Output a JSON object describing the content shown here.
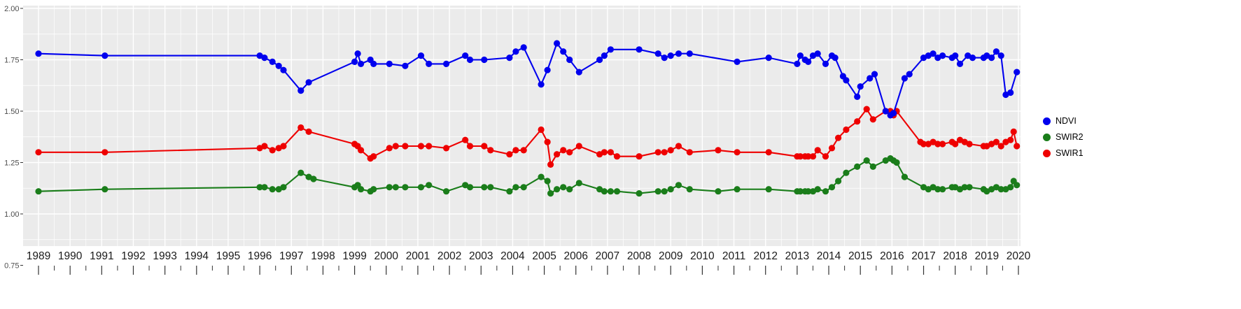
{
  "figure": {
    "background": "#FFFFFF",
    "panel_background": "#EBEBEB",
    "grid_color": "#FFFFFF",
    "tick_color": "#333333",
    "axis_text_color": "#4D4D4D",
    "x_label_color": "#1A1A1A"
  },
  "legend": {
    "items": [
      {
        "label": "NDVI",
        "color": "#0000EE"
      },
      {
        "label": "SWIR2",
        "color": "#1A7D1A"
      },
      {
        "label": "SWIR1",
        "color": "#EE0000"
      }
    ]
  },
  "chart_data": {
    "type": "line",
    "title": "",
    "xlabel": "",
    "ylabel": "",
    "grid": "major+minor",
    "legend_position": "right",
    "xlim": [
      1988.5,
      2020.1
    ],
    "ylim": [
      0.84,
      2.01
    ],
    "x_ticks": [
      1989,
      1990,
      1991,
      1992,
      1993,
      1994,
      1995,
      1996,
      1997,
      1998,
      1999,
      2000,
      2001,
      2002,
      2003,
      2004,
      2005,
      2006,
      2007,
      2008,
      2009,
      2010,
      2011,
      2012,
      2013,
      2014,
      2015,
      2016,
      2017,
      2018,
      2019,
      2020
    ],
    "x_tick_labels": [
      "1989",
      "1990",
      "1991",
      "1992",
      "1993",
      "1994",
      "1995",
      "1996",
      "1997",
      "1998",
      "1999",
      "2000",
      "2001",
      "2002",
      "2003",
      "2004",
      "2005",
      "2006",
      "2007",
      "2008",
      "2009",
      "2010",
      "2011",
      "2012",
      "2013",
      "2014",
      "2015",
      "2016",
      "2017",
      "2018",
      "2019",
      "2020"
    ],
    "y_ticks": [
      2.0,
      1.75,
      1.5,
      1.25,
      1.0,
      0.75
    ],
    "y_tick_labels": [
      "2.00",
      "1.75",
      "1.50",
      "1.25",
      "1.00",
      "0.75"
    ],
    "y_minor_ticks": [
      1.875,
      1.625,
      1.375,
      1.125,
      0.875
    ],
    "series": [
      {
        "name": "SWIR2",
        "color": "#1A7D1A",
        "points": [
          [
            1989.0,
            1.11
          ],
          [
            1991.1,
            1.12
          ],
          [
            1996.0,
            1.13
          ],
          [
            1996.15,
            1.13
          ],
          [
            1996.4,
            1.12
          ],
          [
            1996.6,
            1.12
          ],
          [
            1996.75,
            1.13
          ],
          [
            1997.3,
            1.2
          ],
          [
            1997.55,
            1.18
          ],
          [
            1997.7,
            1.17
          ],
          [
            1999.0,
            1.13
          ],
          [
            1999.1,
            1.14
          ],
          [
            1999.2,
            1.12
          ],
          [
            1999.5,
            1.11
          ],
          [
            1999.6,
            1.12
          ],
          [
            2000.1,
            1.13
          ],
          [
            2000.3,
            1.13
          ],
          [
            2000.6,
            1.13
          ],
          [
            2001.1,
            1.13
          ],
          [
            2001.35,
            1.14
          ],
          [
            2001.9,
            1.11
          ],
          [
            2002.5,
            1.14
          ],
          [
            2002.65,
            1.13
          ],
          [
            2003.1,
            1.13
          ],
          [
            2003.3,
            1.13
          ],
          [
            2003.9,
            1.11
          ],
          [
            2004.1,
            1.13
          ],
          [
            2004.35,
            1.13
          ],
          [
            2004.9,
            1.18
          ],
          [
            2005.1,
            1.16
          ],
          [
            2005.2,
            1.1
          ],
          [
            2005.4,
            1.12
          ],
          [
            2005.6,
            1.13
          ],
          [
            2005.8,
            1.12
          ],
          [
            2006.1,
            1.15
          ],
          [
            2006.75,
            1.12
          ],
          [
            2006.9,
            1.11
          ],
          [
            2007.1,
            1.11
          ],
          [
            2007.3,
            1.11
          ],
          [
            2008.0,
            1.1
          ],
          [
            2008.6,
            1.11
          ],
          [
            2008.8,
            1.11
          ],
          [
            2009.0,
            1.12
          ],
          [
            2009.25,
            1.14
          ],
          [
            2009.6,
            1.12
          ],
          [
            2010.5,
            1.11
          ],
          [
            2011.1,
            1.12
          ],
          [
            2012.1,
            1.12
          ],
          [
            2013.0,
            1.11
          ],
          [
            2013.1,
            1.11
          ],
          [
            2013.25,
            1.11
          ],
          [
            2013.35,
            1.11
          ],
          [
            2013.5,
            1.11
          ],
          [
            2013.65,
            1.12
          ],
          [
            2013.9,
            1.11
          ],
          [
            2014.1,
            1.13
          ],
          [
            2014.3,
            1.16
          ],
          [
            2014.55,
            1.2
          ],
          [
            2014.9,
            1.23
          ],
          [
            2015.2,
            1.26
          ],
          [
            2015.4,
            1.23
          ],
          [
            2015.8,
            1.26
          ],
          [
            2015.95,
            1.27
          ],
          [
            2016.05,
            1.26
          ],
          [
            2016.15,
            1.25
          ],
          [
            2016.4,
            1.18
          ],
          [
            2017.0,
            1.13
          ],
          [
            2017.15,
            1.12
          ],
          [
            2017.3,
            1.13
          ],
          [
            2017.45,
            1.12
          ],
          [
            2017.6,
            1.12
          ],
          [
            2017.9,
            1.13
          ],
          [
            2018.0,
            1.13
          ],
          [
            2018.15,
            1.12
          ],
          [
            2018.3,
            1.13
          ],
          [
            2018.45,
            1.13
          ],
          [
            2018.9,
            1.12
          ],
          [
            2019.0,
            1.11
          ],
          [
            2019.15,
            1.12
          ],
          [
            2019.3,
            1.13
          ],
          [
            2019.45,
            1.12
          ],
          [
            2019.6,
            1.12
          ],
          [
            2019.75,
            1.13
          ],
          [
            2019.85,
            1.16
          ],
          [
            2019.95,
            1.14
          ]
        ]
      },
      {
        "name": "SWIR1",
        "color": "#EE0000",
        "points": [
          [
            1989.0,
            1.3
          ],
          [
            1991.1,
            1.3
          ],
          [
            1996.0,
            1.32
          ],
          [
            1996.15,
            1.33
          ],
          [
            1996.4,
            1.31
          ],
          [
            1996.6,
            1.32
          ],
          [
            1996.75,
            1.33
          ],
          [
            1997.3,
            1.42
          ],
          [
            1997.55,
            1.4
          ],
          [
            1999.0,
            1.34
          ],
          [
            1999.1,
            1.33
          ],
          [
            1999.2,
            1.31
          ],
          [
            1999.5,
            1.27
          ],
          [
            1999.6,
            1.28
          ],
          [
            2000.1,
            1.32
          ],
          [
            2000.3,
            1.33
          ],
          [
            2000.6,
            1.33
          ],
          [
            2001.1,
            1.33
          ],
          [
            2001.35,
            1.33
          ],
          [
            2001.9,
            1.32
          ],
          [
            2002.5,
            1.36
          ],
          [
            2002.65,
            1.33
          ],
          [
            2003.1,
            1.33
          ],
          [
            2003.3,
            1.31
          ],
          [
            2003.9,
            1.29
          ],
          [
            2004.1,
            1.31
          ],
          [
            2004.35,
            1.31
          ],
          [
            2004.9,
            1.41
          ],
          [
            2005.1,
            1.35
          ],
          [
            2005.2,
            1.24
          ],
          [
            2005.4,
            1.29
          ],
          [
            2005.6,
            1.31
          ],
          [
            2005.8,
            1.3
          ],
          [
            2006.1,
            1.33
          ],
          [
            2006.75,
            1.29
          ],
          [
            2006.9,
            1.3
          ],
          [
            2007.1,
            1.3
          ],
          [
            2007.3,
            1.28
          ],
          [
            2008.0,
            1.28
          ],
          [
            2008.6,
            1.3
          ],
          [
            2008.8,
            1.3
          ],
          [
            2009.0,
            1.31
          ],
          [
            2009.25,
            1.33
          ],
          [
            2009.6,
            1.3
          ],
          [
            2010.5,
            1.31
          ],
          [
            2011.1,
            1.3
          ],
          [
            2012.1,
            1.3
          ],
          [
            2013.0,
            1.28
          ],
          [
            2013.1,
            1.28
          ],
          [
            2013.25,
            1.28
          ],
          [
            2013.35,
            1.28
          ],
          [
            2013.5,
            1.28
          ],
          [
            2013.65,
            1.31
          ],
          [
            2013.9,
            1.28
          ],
          [
            2014.1,
            1.32
          ],
          [
            2014.3,
            1.37
          ],
          [
            2014.55,
            1.41
          ],
          [
            2014.9,
            1.45
          ],
          [
            2015.2,
            1.51
          ],
          [
            2015.4,
            1.46
          ],
          [
            2015.8,
            1.5
          ],
          [
            2015.95,
            1.5
          ],
          [
            2016.05,
            1.48
          ],
          [
            2016.15,
            1.5
          ],
          [
            2016.9,
            1.35
          ],
          [
            2017.0,
            1.34
          ],
          [
            2017.15,
            1.34
          ],
          [
            2017.3,
            1.35
          ],
          [
            2017.45,
            1.34
          ],
          [
            2017.6,
            1.34
          ],
          [
            2017.9,
            1.35
          ],
          [
            2018.0,
            1.34
          ],
          [
            2018.15,
            1.36
          ],
          [
            2018.3,
            1.35
          ],
          [
            2018.45,
            1.34
          ],
          [
            2018.9,
            1.33
          ],
          [
            2019.0,
            1.33
          ],
          [
            2019.15,
            1.34
          ],
          [
            2019.3,
            1.35
          ],
          [
            2019.45,
            1.33
          ],
          [
            2019.6,
            1.35
          ],
          [
            2019.75,
            1.36
          ],
          [
            2019.85,
            1.4
          ],
          [
            2019.95,
            1.33
          ]
        ]
      },
      {
        "name": "NDVI",
        "color": "#0000EE",
        "points": [
          [
            1989.0,
            1.78
          ],
          [
            1991.1,
            1.77
          ],
          [
            1996.0,
            1.77
          ],
          [
            1996.15,
            1.76
          ],
          [
            1996.4,
            1.74
          ],
          [
            1996.6,
            1.72
          ],
          [
            1996.75,
            1.7
          ],
          [
            1997.3,
            1.6
          ],
          [
            1997.55,
            1.64
          ],
          [
            1999.0,
            1.74
          ],
          [
            1999.1,
            1.78
          ],
          [
            1999.2,
            1.73
          ],
          [
            1999.5,
            1.75
          ],
          [
            1999.6,
            1.73
          ],
          [
            2000.1,
            1.73
          ],
          [
            2000.6,
            1.72
          ],
          [
            2001.1,
            1.77
          ],
          [
            2001.35,
            1.73
          ],
          [
            2001.9,
            1.73
          ],
          [
            2002.5,
            1.77
          ],
          [
            2002.65,
            1.75
          ],
          [
            2003.1,
            1.75
          ],
          [
            2003.9,
            1.76
          ],
          [
            2004.1,
            1.79
          ],
          [
            2004.35,
            1.81
          ],
          [
            2004.9,
            1.63
          ],
          [
            2005.1,
            1.7
          ],
          [
            2005.4,
            1.83
          ],
          [
            2005.6,
            1.79
          ],
          [
            2005.8,
            1.75
          ],
          [
            2006.1,
            1.69
          ],
          [
            2006.75,
            1.75
          ],
          [
            2006.9,
            1.77
          ],
          [
            2007.1,
            1.8
          ],
          [
            2008.0,
            1.8
          ],
          [
            2008.6,
            1.78
          ],
          [
            2008.8,
            1.76
          ],
          [
            2009.0,
            1.77
          ],
          [
            2009.25,
            1.78
          ],
          [
            2009.6,
            1.78
          ],
          [
            2011.1,
            1.74
          ],
          [
            2012.1,
            1.76
          ],
          [
            2013.0,
            1.73
          ],
          [
            2013.1,
            1.77
          ],
          [
            2013.25,
            1.75
          ],
          [
            2013.35,
            1.74
          ],
          [
            2013.5,
            1.77
          ],
          [
            2013.65,
            1.78
          ],
          [
            2013.9,
            1.73
          ],
          [
            2014.1,
            1.77
          ],
          [
            2014.2,
            1.76
          ],
          [
            2014.45,
            1.67
          ],
          [
            2014.55,
            1.65
          ],
          [
            2014.9,
            1.57
          ],
          [
            2015.0,
            1.62
          ],
          [
            2015.3,
            1.66
          ],
          [
            2015.45,
            1.68
          ],
          [
            2015.8,
            1.5
          ],
          [
            2015.95,
            1.48
          ],
          [
            2016.05,
            1.49
          ],
          [
            2016.4,
            1.66
          ],
          [
            2016.55,
            1.68
          ],
          [
            2017.0,
            1.76
          ],
          [
            2017.15,
            1.77
          ],
          [
            2017.3,
            1.78
          ],
          [
            2017.45,
            1.76
          ],
          [
            2017.6,
            1.77
          ],
          [
            2017.9,
            1.76
          ],
          [
            2018.0,
            1.77
          ],
          [
            2018.15,
            1.73
          ],
          [
            2018.4,
            1.77
          ],
          [
            2018.55,
            1.76
          ],
          [
            2018.9,
            1.76
          ],
          [
            2019.0,
            1.77
          ],
          [
            2019.15,
            1.76
          ],
          [
            2019.3,
            1.79
          ],
          [
            2019.45,
            1.77
          ],
          [
            2019.6,
            1.58
          ],
          [
            2019.75,
            1.59
          ],
          [
            2019.95,
            1.69
          ]
        ]
      }
    ]
  }
}
